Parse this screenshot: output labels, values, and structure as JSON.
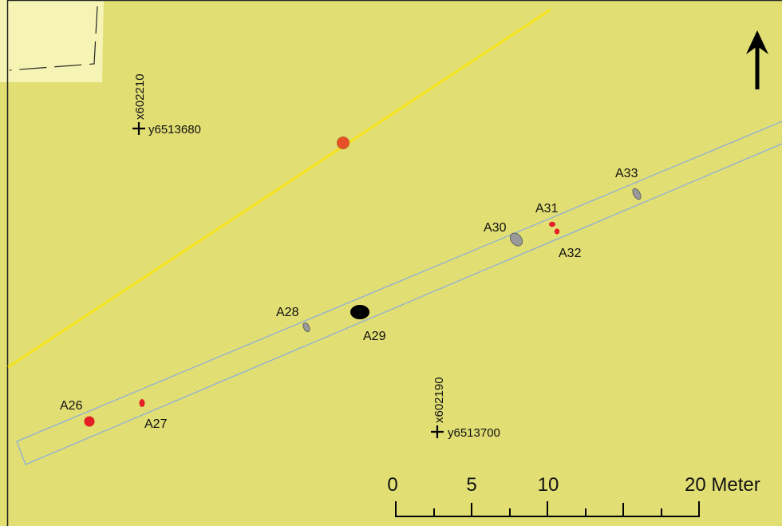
{
  "map": {
    "colors": {
      "background": "#e1de74",
      "light_area": "#f6f4b4",
      "road": "#f5e21a",
      "trench_outline": "#8fb0d6",
      "red_feature": "#e31e24",
      "orange_feature": "#e8502a",
      "grey_feature": "#9a9a9a",
      "black_feature": "#000000"
    },
    "north_arrow": {
      "icon": "north-arrow-icon"
    },
    "coordinates": [
      {
        "x_label": "x602210",
        "y_label": "y6513680"
      },
      {
        "x_label": "x602190",
        "y_label": "y6513700"
      }
    ],
    "features": [
      {
        "id": "A26",
        "type": "red"
      },
      {
        "id": "A27",
        "type": "red"
      },
      {
        "id": "A28",
        "type": "grey"
      },
      {
        "id": "A29",
        "type": "black"
      },
      {
        "id": "A30",
        "type": "grey"
      },
      {
        "id": "A31",
        "type": "red"
      },
      {
        "id": "A32",
        "type": "red"
      },
      {
        "id": "A33",
        "type": "grey"
      }
    ],
    "scale_bar": {
      "labels": [
        "0",
        "5",
        "10",
        "20 Meter"
      ]
    }
  }
}
